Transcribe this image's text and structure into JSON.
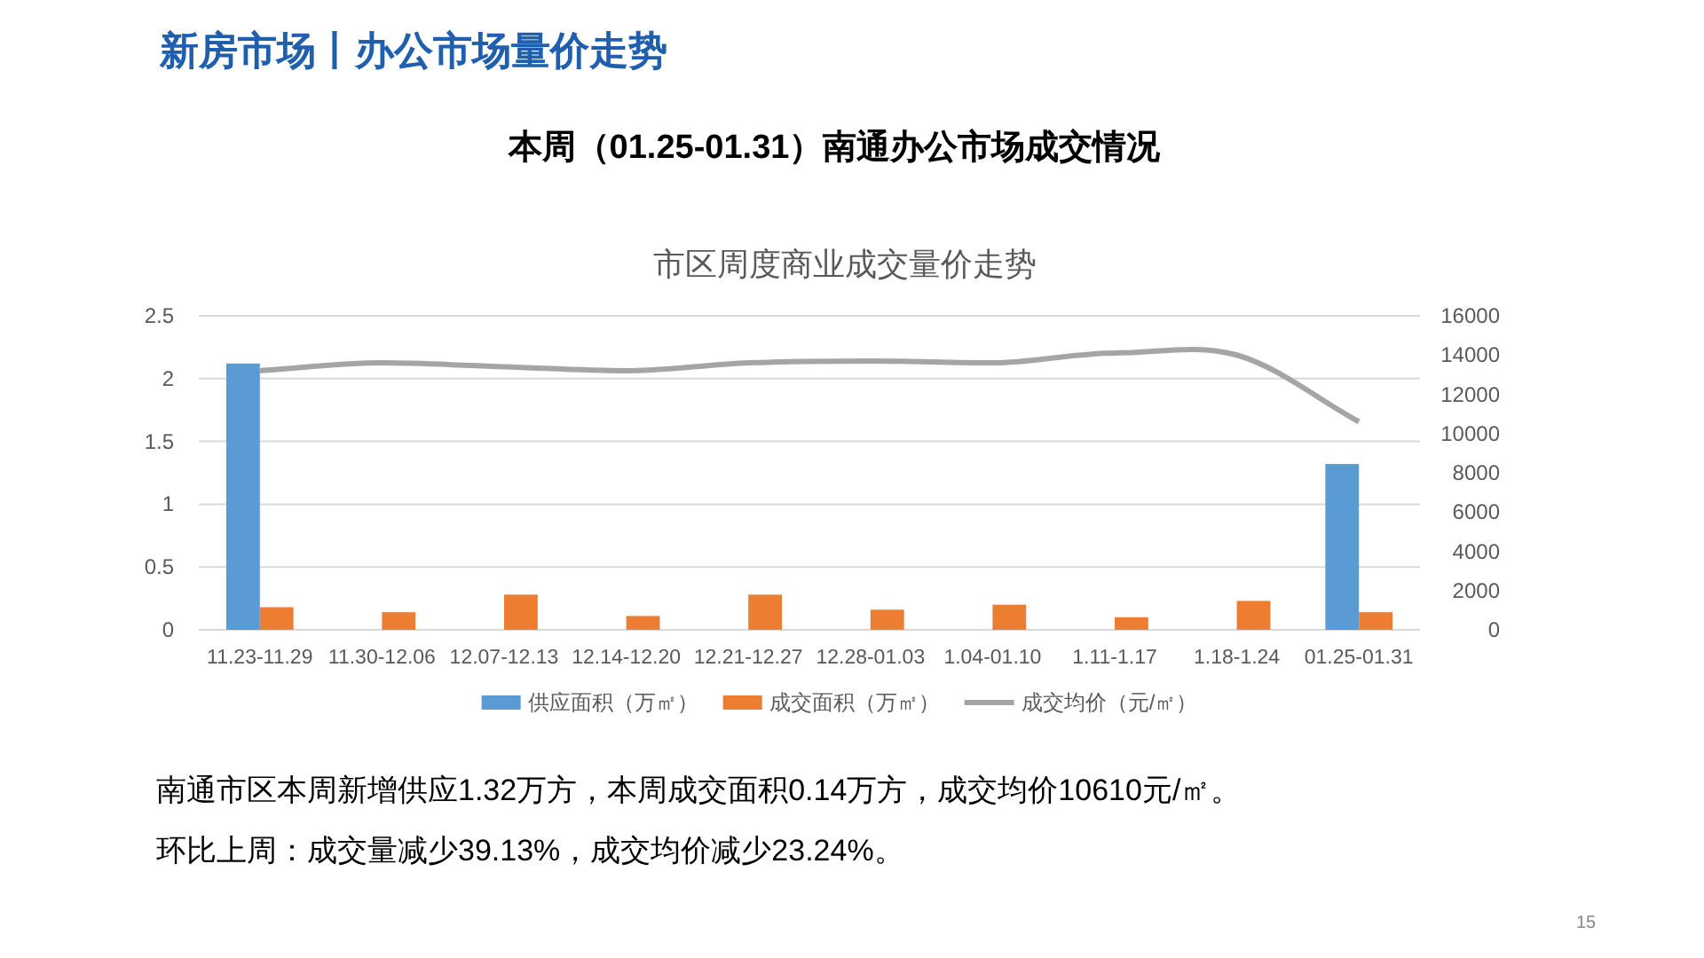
{
  "chart_data": {
    "type": "bar",
    "title": "市区周度商业成交量价走势",
    "subtitle": "本周（01.25-01.31）南通办公市场成交情况",
    "annotations": [
      "新房市场丨办公市场量价走势",
      "南通市区本周新增供应1.32万方，本周成交面积0.14万方，成交均价10610元/㎡。",
      "环比上周：成交量减少39.13%，成交均价减少23.24%。",
      "15"
    ],
    "categories": [
      "11.23-11.29",
      "11.30-12.06",
      "12.07-12.13",
      "12.14-12.20",
      "12.21-12.27",
      "12.28-01.03",
      "1.04-01.10",
      "1.11-1.17",
      "1.18-1.24",
      "01.25-01.31"
    ],
    "series": [
      {
        "name": "供应面积（万㎡）",
        "color": "#5b9bd5",
        "values": [
          2.12,
          null,
          null,
          null,
          null,
          null,
          null,
          null,
          null,
          1.32
        ]
      },
      {
        "name": "成交面积（万㎡）",
        "color": "#ed7d31",
        "values": [
          0.18,
          0.14,
          0.28,
          0.11,
          0.28,
          0.16,
          0.2,
          0.1,
          0.23,
          0.14
        ]
      },
      {
        "name": "成交均价（元/㎡）",
        "type": "line",
        "axis": "y2",
        "color": "#a5a5a5",
        "values": [
          13200,
          13600,
          13400,
          13200,
          13600,
          13700,
          13600,
          14100,
          14000,
          10600
        ]
      }
    ],
    "ylim": [
      0,
      2.5
    ],
    "yticks": [
      0,
      0.5,
      1,
      1.5,
      2,
      2.5
    ],
    "y2lim": [
      0,
      16000
    ],
    "y2ticks": [
      0,
      2000,
      4000,
      6000,
      8000,
      10000,
      12000,
      14000,
      16000
    ],
    "grid": "y",
    "legend": "bottom",
    "marker": "none",
    "line_style": "solid"
  }
}
